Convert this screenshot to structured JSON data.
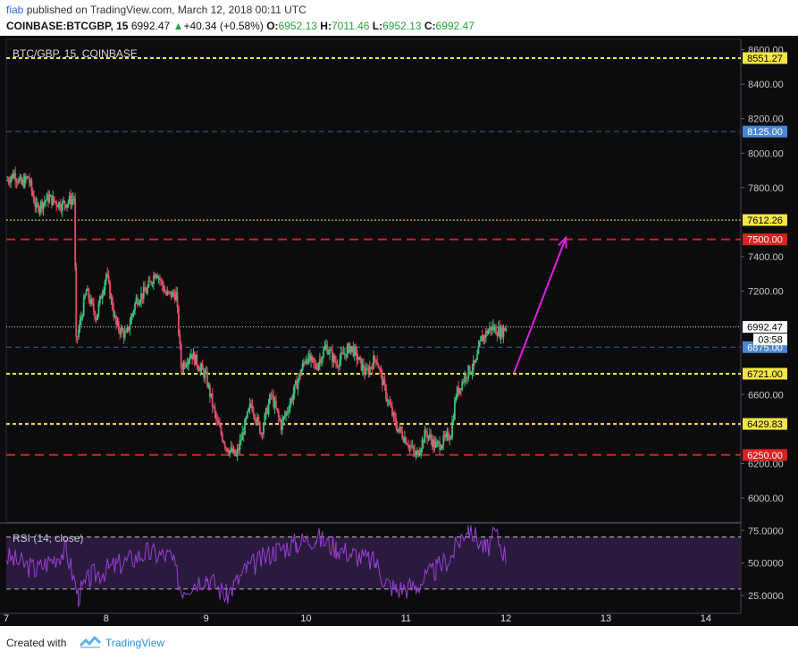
{
  "header": {
    "author": "fiab",
    "published_text": "published on TradingView.com, March 12, 2018 00:11 UTC",
    "symbol": "COINBASE:BTCGBP, 15",
    "price": "6992.47",
    "change_arrow": "▲",
    "change": "+40.34 (+0.58%)",
    "o_label": "O:",
    "o_value": "6952.13",
    "h_label": "H:",
    "h_value": "7011.46",
    "l_label": "L:",
    "l_value": "6952.13",
    "c_label": "C:",
    "c_value": "6992.47"
  },
  "chart_data": {
    "type": "candlestick",
    "title": "BTC/GBP, 15, COINBASE",
    "x_tick_labels": [
      "7",
      "8",
      "9",
      "10",
      "11",
      "12",
      "13",
      "14"
    ],
    "x_range": [
      7,
      14.35
    ],
    "y_range": [
      5860,
      8660
    ],
    "y_tick_labels": [
      "8600.00",
      "8400.00",
      "8200.00",
      "8000.00",
      "7800.00",
      "7400.00",
      "7200.00",
      "6600.00",
      "6200.00",
      "6000.00"
    ],
    "price_path": [
      [
        7.0,
        7840
      ],
      [
        7.08,
        7880
      ],
      [
        7.15,
        7820
      ],
      [
        7.22,
        7860
      ],
      [
        7.3,
        7680
      ],
      [
        7.42,
        7740
      ],
      [
        7.55,
        7700
      ],
      [
        7.68,
        7740
      ],
      [
        7.7,
        6900
      ],
      [
        7.8,
        7200
      ],
      [
        7.9,
        7050
      ],
      [
        8.0,
        7300
      ],
      [
        8.1,
        7000
      ],
      [
        8.2,
        6940
      ],
      [
        8.3,
        7150
      ],
      [
        8.4,
        7200
      ],
      [
        8.5,
        7320
      ],
      [
        8.6,
        7180
      ],
      [
        8.7,
        7180
      ],
      [
        8.75,
        6760
      ],
      [
        8.85,
        6840
      ],
      [
        9.0,
        6700
      ],
      [
        9.1,
        6450
      ],
      [
        9.2,
        6300
      ],
      [
        9.3,
        6240
      ],
      [
        9.45,
        6550
      ],
      [
        9.55,
        6380
      ],
      [
        9.65,
        6600
      ],
      [
        9.75,
        6420
      ],
      [
        9.85,
        6570
      ],
      [
        10.0,
        6820
      ],
      [
        10.1,
        6760
      ],
      [
        10.2,
        6880
      ],
      [
        10.3,
        6780
      ],
      [
        10.45,
        6880
      ],
      [
        10.6,
        6720
      ],
      [
        10.7,
        6820
      ],
      [
        10.8,
        6600
      ],
      [
        10.9,
        6420
      ],
      [
        11.0,
        6340
      ],
      [
        11.1,
        6240
      ],
      [
        11.2,
        6380
      ],
      [
        11.3,
        6300
      ],
      [
        11.4,
        6340
      ],
      [
        11.45,
        6380
      ],
      [
        11.5,
        6600
      ],
      [
        11.6,
        6720
      ],
      [
        11.7,
        6780
      ],
      [
        11.75,
        6920
      ],
      [
        11.85,
        6990
      ],
      [
        11.95,
        6960
      ],
      [
        12.0,
        6992
      ]
    ],
    "levels": [
      {
        "label": "8551.27",
        "value": 8551.27,
        "style": "yellow-thick-dashed",
        "badge_bg": "#f5e642",
        "badge_fg": "#000000"
      },
      {
        "label": "8125.00",
        "value": 8125.0,
        "style": "blue-dashed",
        "badge_bg": "#4a86d8",
        "badge_fg": "#ffffff"
      },
      {
        "label": "7612.26",
        "value": 7612.26,
        "style": "yellow-thin-dotted",
        "badge_bg": "#f5e642",
        "badge_fg": "#000000"
      },
      {
        "label": "7500.00",
        "value": 7500.0,
        "style": "red-dashed",
        "badge_bg": "#e02020",
        "badge_fg": "#ffffff"
      },
      {
        "label": "6992.47",
        "value": 6992.47,
        "style": "white-dotted",
        "badge_bg": "#ffffff",
        "badge_fg": "#000000"
      },
      {
        "label": "6875.00",
        "value": 6875.0,
        "style": "blue-dashed",
        "badge_bg": "#4a86d8",
        "badge_fg": "#ffffff"
      },
      {
        "label": "6721.00",
        "value": 6721.0,
        "style": "yellow-thick-dashed",
        "badge_bg": "#f5e642",
        "badge_fg": "#000000"
      },
      {
        "label": "6429.83",
        "value": 6429.83,
        "style": "yellow-thick-dashed",
        "badge_bg": "#f5e642",
        "badge_fg": "#000000"
      },
      {
        "label": "6250.00",
        "value": 6250.0,
        "style": "red-dashed",
        "badge_bg": "#e02020",
        "badge_fg": "#ffffff"
      }
    ],
    "countdown": "03:58",
    "arrow": {
      "from": [
        12.08,
        6725
      ],
      "to": [
        12.6,
        7510
      ],
      "color": "#e020e0"
    },
    "rsi": {
      "label": "RSI (14, close)",
      "y_range": [
        12,
        80
      ],
      "tick_labels": [
        "75.0000",
        "50.0000",
        "25.0000"
      ],
      "ticks": [
        75,
        50,
        25
      ],
      "band": [
        30,
        70
      ],
      "path": [
        [
          7.0,
          55
        ],
        [
          7.3,
          45
        ],
        [
          7.6,
          60
        ],
        [
          7.72,
          25
        ],
        [
          7.85,
          40
        ],
        [
          8.1,
          48
        ],
        [
          8.4,
          58
        ],
        [
          8.65,
          55
        ],
        [
          8.75,
          30
        ],
        [
          9.0,
          40
        ],
        [
          9.2,
          25
        ],
        [
          9.4,
          45
        ],
        [
          9.7,
          60
        ],
        [
          9.9,
          65
        ],
        [
          10.1,
          70
        ],
        [
          10.3,
          62
        ],
        [
          10.5,
          56
        ],
        [
          10.7,
          50
        ],
        [
          10.8,
          35
        ],
        [
          10.9,
          30
        ],
        [
          11.1,
          32
        ],
        [
          11.3,
          45
        ],
        [
          11.45,
          55
        ],
        [
          11.55,
          70
        ],
        [
          11.62,
          78
        ],
        [
          11.8,
          60
        ],
        [
          11.9,
          72
        ],
        [
          12.0,
          55
        ]
      ]
    }
  },
  "footer": {
    "created_with": "Created with",
    "brand": "TradingView"
  }
}
